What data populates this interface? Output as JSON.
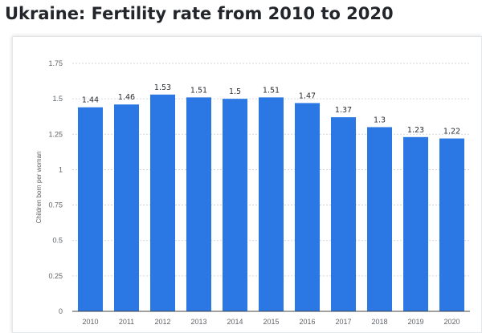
{
  "title": "Ukraine: Fertility rate from 2010 to 2020",
  "colors": {
    "bar": "#2b78e4",
    "grid": "#c8cdd3",
    "axis": "#444444"
  },
  "chart_data": {
    "type": "bar",
    "categories": [
      "2010",
      "2011",
      "2012",
      "2013",
      "2014",
      "2015",
      "2016",
      "2017",
      "2018",
      "2019",
      "2020"
    ],
    "values": [
      1.44,
      1.46,
      1.53,
      1.51,
      1.5,
      1.51,
      1.47,
      1.37,
      1.3,
      1.23,
      1.22
    ],
    "value_labels": [
      "1.44",
      "1.46",
      "1.53",
      "1.51",
      "1.5",
      "1.51",
      "1.47",
      "1.37",
      "1.3",
      "1.23",
      "1.22"
    ],
    "ylabel": "Children born per woman",
    "xlabel": "",
    "ylim": [
      0,
      1.75
    ],
    "yticks": [
      0,
      0.25,
      0.5,
      0.75,
      1,
      1.25,
      1.5,
      1.75
    ],
    "ytick_labels": [
      "0",
      "0.25",
      "0.5",
      "0.75",
      "1",
      "1.25",
      "1.5",
      "1.75"
    ],
    "grid": true,
    "legend": "none"
  }
}
